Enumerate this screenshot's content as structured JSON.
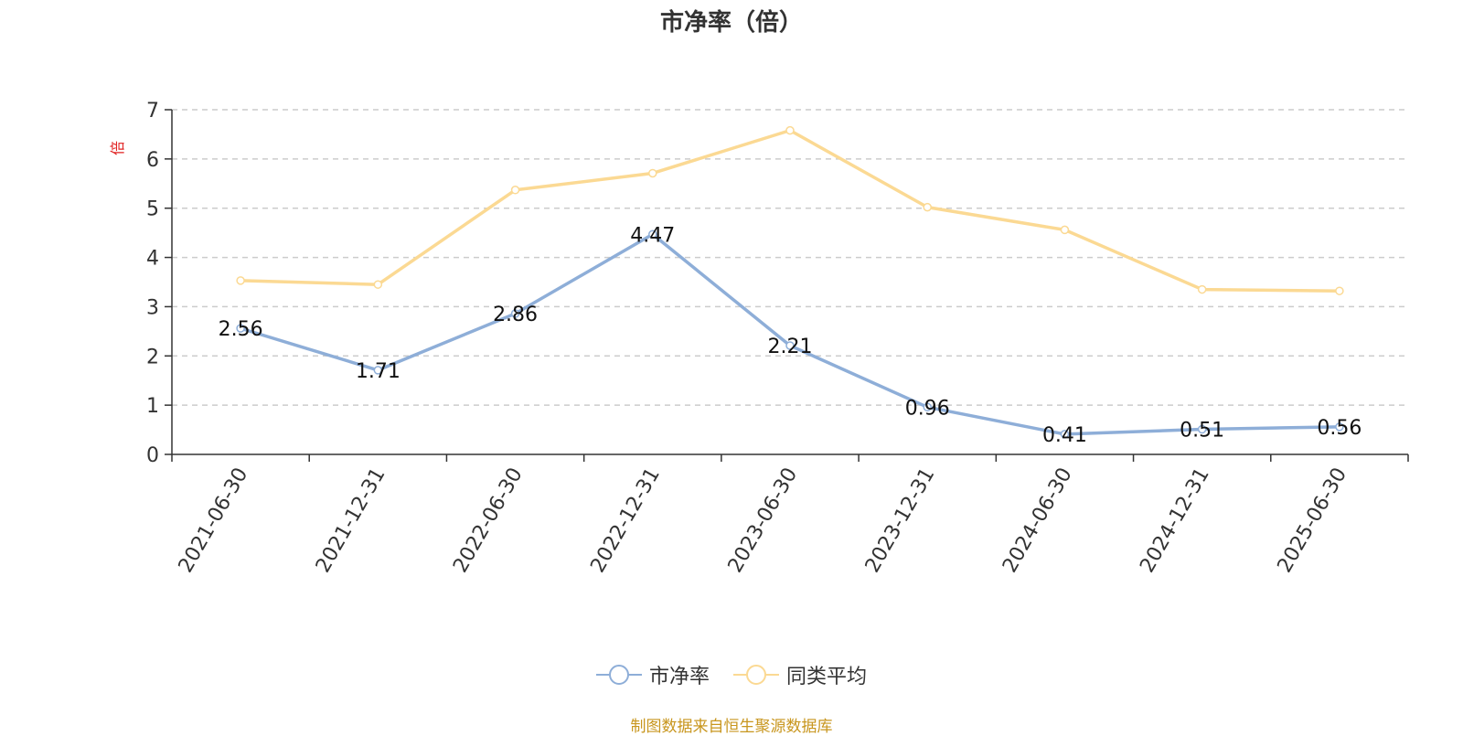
{
  "chart_data": {
    "type": "line",
    "title": "市净率（倍）",
    "ylabel": "倍",
    "xlabel": "",
    "categories": [
      "2021-06-30",
      "2021-12-31",
      "2022-06-30",
      "2022-12-31",
      "2023-06-30",
      "2023-12-31",
      "2024-06-30",
      "2024-12-31",
      "2025-06-30"
    ],
    "yticks": [
      "0",
      "1",
      "2",
      "3",
      "4",
      "5",
      "6",
      "7"
    ],
    "ylim": [
      0,
      7
    ],
    "grid": true,
    "legend_position": "bottom",
    "series": [
      {
        "name": "市净率",
        "color": "#8eaed8",
        "values": [
          2.56,
          1.71,
          2.86,
          4.47,
          2.21,
          0.96,
          0.41,
          0.51,
          0.56
        ],
        "labels": [
          "2.56",
          "1.71",
          "2.86",
          "4.47",
          "2.21",
          "0.96",
          "0.41",
          "0.51",
          "0.56"
        ]
      },
      {
        "name": "同类平均",
        "color": "#fbd993",
        "values": [
          3.53,
          3.45,
          5.37,
          5.71,
          6.58,
          5.02,
          4.56,
          3.35,
          3.32
        ]
      }
    ]
  },
  "colors": {
    "ylabel": "#e02020",
    "source": "#c8961e",
    "grid": "#cccccc",
    "axis": "#333333"
  },
  "source_note": "制图数据来自恒生聚源数据库"
}
